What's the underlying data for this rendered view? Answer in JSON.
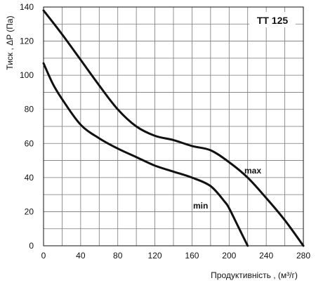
{
  "chart_data": {
    "type": "line",
    "title": "TT 125",
    "xlabel": "Продуктивність , (м³/г)",
    "ylabel": "Тиск , ΔP (Па)",
    "xlim": [
      0,
      280
    ],
    "ylim": [
      0,
      140
    ],
    "x_ticks": [
      "0",
      "40",
      "80",
      "120",
      "160",
      "200",
      "240",
      "280"
    ],
    "y_ticks": [
      "0",
      "20",
      "40",
      "60",
      "80",
      "100",
      "120",
      "140"
    ],
    "grid": true,
    "x_grid_step": 20,
    "y_grid_step": 10,
    "line_color": "#111111",
    "series": [
      {
        "name": "max",
        "points": [
          [
            0,
            138
          ],
          [
            20,
            124
          ],
          [
            40,
            109
          ],
          [
            60,
            94
          ],
          [
            80,
            80
          ],
          [
            100,
            70
          ],
          [
            120,
            64.5
          ],
          [
            140,
            62
          ],
          [
            160,
            58.5
          ],
          [
            180,
            56
          ],
          [
            200,
            49
          ],
          [
            220,
            40
          ],
          [
            240,
            28
          ],
          [
            260,
            15
          ],
          [
            280,
            0
          ]
        ]
      },
      {
        "name": "min",
        "points": [
          [
            0,
            107
          ],
          [
            10,
            95
          ],
          [
            20,
            86
          ],
          [
            40,
            71
          ],
          [
            60,
            63
          ],
          [
            80,
            57
          ],
          [
            100,
            52
          ],
          [
            120,
            47
          ],
          [
            140,
            43.5
          ],
          [
            160,
            40
          ],
          [
            180,
            35
          ],
          [
            195,
            26
          ],
          [
            200,
            22
          ],
          [
            210,
            11
          ],
          [
            220,
            0
          ]
        ]
      }
    ]
  }
}
